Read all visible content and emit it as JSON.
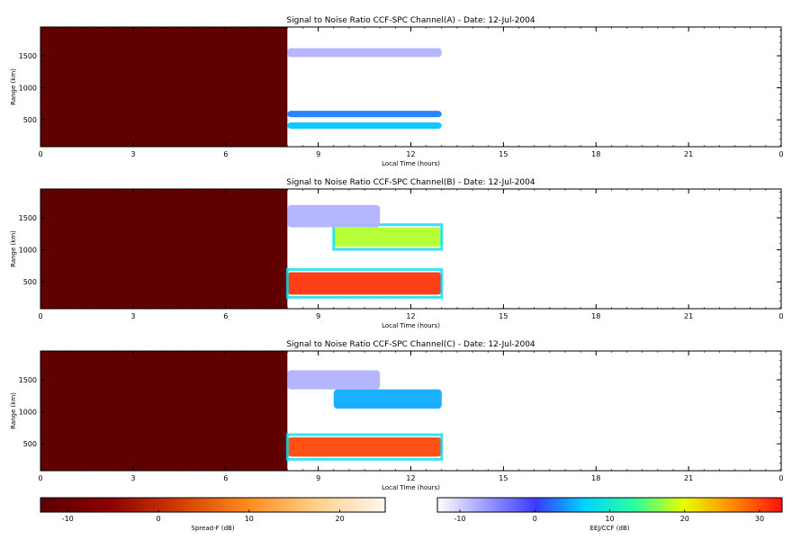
{
  "chart_data": [
    {
      "type": "heatmap",
      "title": "Signal to Noise Ratio CCF-SPC Channel(A) - Date: 12-Jul-2004",
      "xlabel": "Local Time (hours)",
      "ylabel": "Range (km)",
      "xlim": [
        0,
        24
      ],
      "ylim": [
        80,
        1950
      ],
      "xticks": [
        "0",
        "3",
        "6",
        "9",
        "12",
        "15",
        "18",
        "21",
        "0"
      ],
      "yticks": [
        "500",
        "1000",
        "1500"
      ],
      "regions": [
        {
          "colorbar": "spread_f",
          "x": [
            0,
            8.0
          ],
          "y": [
            80,
            1950
          ],
          "value": -12
        },
        {
          "colorbar": "eej_ccf",
          "x": [
            8.0,
            13.0
          ],
          "y": [
            360,
            460
          ],
          "value": 6
        },
        {
          "colorbar": "eej_ccf",
          "x": [
            8.0,
            13.0
          ],
          "y": [
            540,
            640
          ],
          "value": 3
        },
        {
          "colorbar": "eej_ccf",
          "x": [
            8.0,
            13.0
          ],
          "y": [
            1480,
            1620
          ],
          "value": -8
        }
      ]
    },
    {
      "type": "heatmap",
      "title": "Signal to Noise Ratio CCF-SPC Channel(B) - Date: 12-Jul-2004",
      "xlabel": "Local Time (hours)",
      "ylabel": "Range (km)",
      "xlim": [
        0,
        24
      ],
      "ylim": [
        80,
        1950
      ],
      "xticks": [
        "0",
        "3",
        "6",
        "9",
        "12",
        "15",
        "18",
        "21",
        "0"
      ],
      "yticks": [
        "500",
        "1000",
        "1500"
      ],
      "regions": [
        {
          "colorbar": "spread_f",
          "x": [
            0,
            8.0
          ],
          "y": [
            80,
            1950
          ],
          "value": -12
        },
        {
          "colorbar": "eej_ccf",
          "x": [
            8.0,
            13.0
          ],
          "y": [
            300,
            650
          ],
          "value": 31
        },
        {
          "colorbar": "eej_ccf",
          "x": [
            9.5,
            13.0
          ],
          "y": [
            1050,
            1350
          ],
          "value": 18
        },
        {
          "colorbar": "eej_ccf",
          "x": [
            8.0,
            11.0
          ],
          "y": [
            1350,
            1700
          ],
          "value": -8
        }
      ]
    },
    {
      "type": "heatmap",
      "title": "Signal to Noise Ratio CCF-SPC Channel(C) - Date: 12-Jul-2004",
      "xlabel": "Local Time (hours)",
      "ylabel": "Range (km)",
      "xlim": [
        0,
        24
      ],
      "ylim": [
        80,
        1950
      ],
      "xticks": [
        "0",
        "3",
        "6",
        "9",
        "12",
        "15",
        "18",
        "21",
        "0"
      ],
      "yticks": [
        "500",
        "1000",
        "1500"
      ],
      "regions": [
        {
          "colorbar": "spread_f",
          "x": [
            0,
            8.0
          ],
          "y": [
            80,
            1950
          ],
          "value": -12
        },
        {
          "colorbar": "eej_ccf",
          "x": [
            8.0,
            13.0
          ],
          "y": [
            300,
            600
          ],
          "value": 30
        },
        {
          "colorbar": "eej_ccf",
          "x": [
            9.5,
            13.0
          ],
          "y": [
            1050,
            1350
          ],
          "value": 5
        },
        {
          "colorbar": "eej_ccf",
          "x": [
            8.0,
            11.0
          ],
          "y": [
            1350,
            1650
          ],
          "value": -8
        }
      ]
    }
  ],
  "colorbars": {
    "spread_f": {
      "label": "Spread-F (dB)",
      "range": [
        -13,
        25
      ],
      "ticks": [
        "-10",
        "0",
        "10",
        "20"
      ],
      "stops": [
        "#5a0000",
        "#8b0000",
        "#d23c00",
        "#ff8a1e",
        "#ffd08a",
        "#fff7ee"
      ]
    },
    "eej_ccf": {
      "label": "EEJ/CCF (dB)",
      "range": [
        -13,
        33
      ],
      "ticks": [
        "-10",
        "0",
        "10",
        "20",
        "30"
      ],
      "stops": [
        "#ffffff",
        "#9a9aff",
        "#3a3aff",
        "#00d4ff",
        "#2bff9e",
        "#e8ff00",
        "#ff8a00",
        "#ff1010"
      ]
    }
  }
}
